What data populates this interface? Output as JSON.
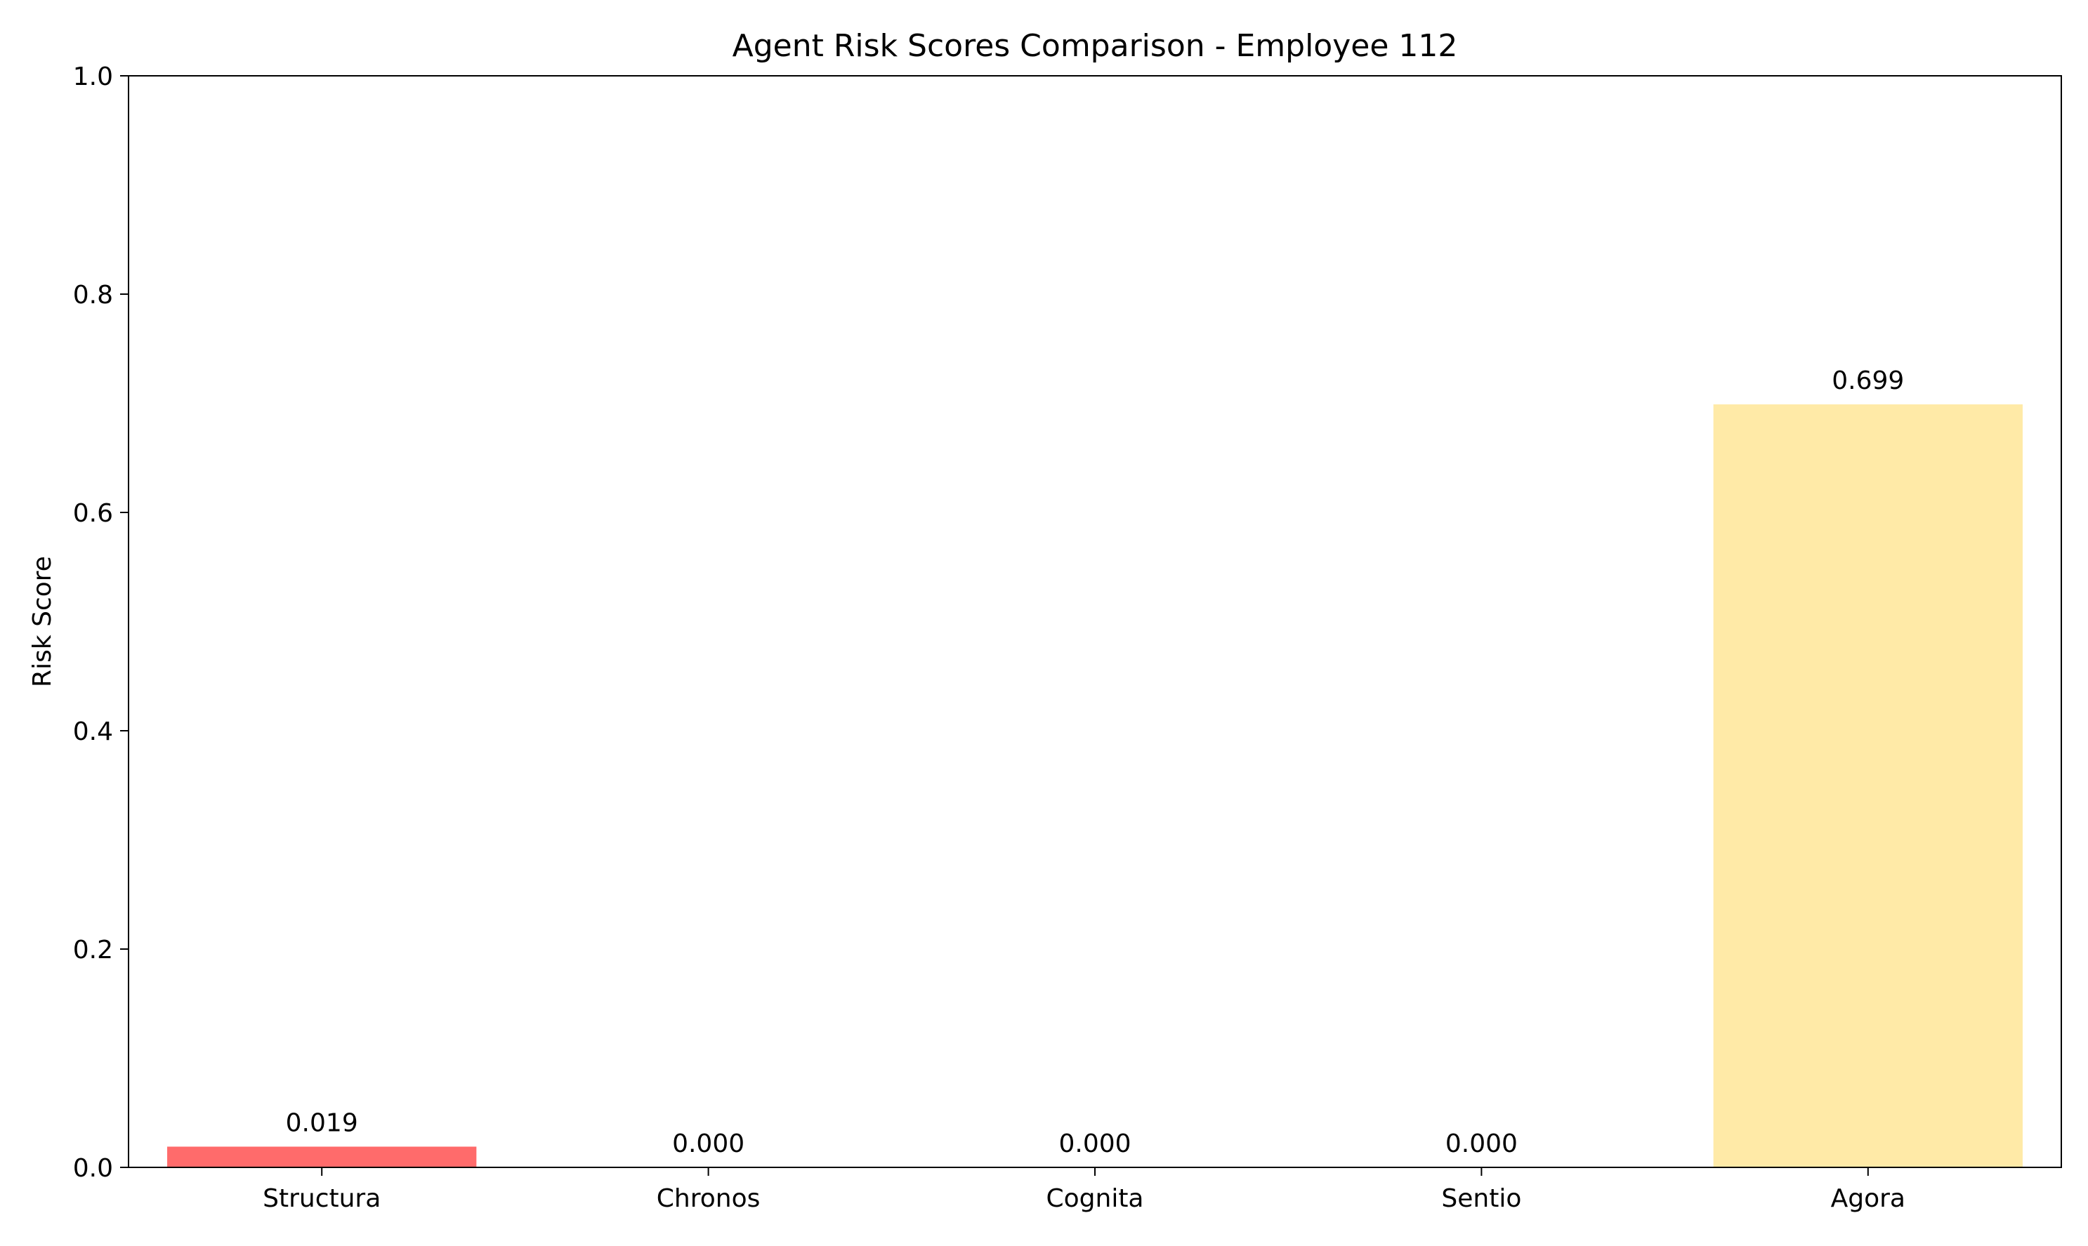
{
  "chart_data": {
    "type": "bar",
    "title": "Agent Risk Scores Comparison - Employee 112",
    "xlabel": "",
    "ylabel": "Risk Score",
    "categories": [
      "Structura",
      "Chronos",
      "Cognita",
      "Sentio",
      "Agora"
    ],
    "values": [
      0.019,
      0.0,
      0.0,
      0.0,
      0.699
    ],
    "value_labels": [
      "0.019",
      "0.000",
      "0.000",
      "0.000",
      "0.699"
    ],
    "bar_colors": [
      "#ff6b6b",
      "#4ecdc4",
      "#45b7d1",
      "#96ceb4",
      "#ffeaa7"
    ],
    "ylim": [
      0,
      1.0
    ],
    "yticks": [
      {
        "value": 0.0,
        "label": "0.0"
      },
      {
        "value": 0.2,
        "label": "0.2"
      },
      {
        "value": 0.4,
        "label": "0.4"
      },
      {
        "value": 0.6,
        "label": "0.6"
      },
      {
        "value": 0.8,
        "label": "0.8"
      },
      {
        "value": 1.0,
        "label": "1.0"
      }
    ],
    "grid": false,
    "legend": "none"
  }
}
